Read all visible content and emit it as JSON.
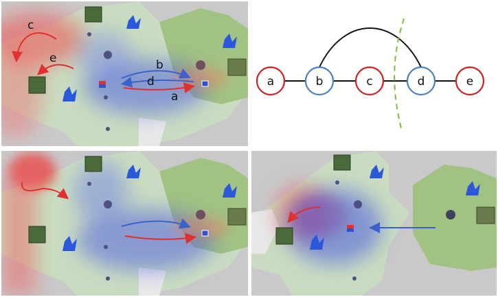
{
  "panels": {
    "top_left": {
      "arrow_labels": {
        "c": "c",
        "e": "e",
        "b": "b",
        "d": "d",
        "a": "a"
      }
    },
    "top_right": {
      "nodes": [
        {
          "id": "a",
          "label": "a",
          "color": "#cc2222"
        },
        {
          "id": "b",
          "label": "b",
          "color": "#4a7fc0"
        },
        {
          "id": "c",
          "label": "c",
          "color": "#cc2222"
        },
        {
          "id": "d",
          "label": "d",
          "color": "#4a7fc0"
        },
        {
          "id": "e",
          "label": "e",
          "color": "#cc2222"
        }
      ],
      "cut_line_color": "#7dbb3a"
    },
    "bottom_left": {},
    "bottom_right": {}
  },
  "colors": {
    "red_team": "#e85050",
    "blue_team": "#4a6ad8",
    "land": "#c8dcc0",
    "forest": "#9cbc7c",
    "water": "#c8c8c8"
  },
  "icons": [
    "bunker-icon",
    "crystal-icon",
    "mineral-icon",
    "flag-icon"
  ]
}
